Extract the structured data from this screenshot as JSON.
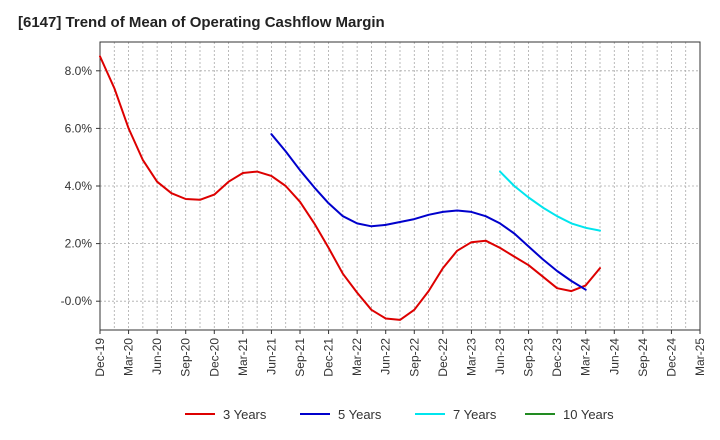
{
  "chart_data": {
    "type": "line",
    "title": "[6147]  Trend of Mean of Operating Cashflow Margin",
    "xlabel": "",
    "ylabel": "",
    "x_ticks": [
      "Dec-19",
      "Mar-20",
      "Jun-20",
      "Sep-20",
      "Dec-20",
      "Mar-21",
      "Jun-21",
      "Sep-21",
      "Dec-21",
      "Mar-22",
      "Jun-22",
      "Sep-22",
      "Dec-22",
      "Mar-23",
      "Jun-23",
      "Sep-23",
      "Dec-23",
      "Mar-24",
      "Jun-24",
      "Sep-24",
      "Dec-24",
      "Mar-25"
    ],
    "y_ticks": [
      "-0.0%",
      "2.0%",
      "4.0%",
      "6.0%",
      "8.0%"
    ],
    "y_tick_values": [
      0,
      2,
      4,
      6,
      8
    ],
    "ylim": [
      -1.0,
      9.0
    ],
    "grid": true,
    "legend_position": "bottom",
    "series": [
      {
        "name": "3 Years",
        "color": "#dd0000",
        "points": [
          [
            0,
            8.5
          ],
          [
            1,
            7.4
          ],
          [
            2,
            6.0
          ],
          [
            3,
            4.9
          ],
          [
            4,
            4.15
          ],
          [
            5,
            3.75
          ],
          [
            6,
            3.55
          ],
          [
            7,
            3.52
          ],
          [
            8,
            3.7
          ],
          [
            9,
            4.15
          ],
          [
            10,
            4.45
          ],
          [
            11,
            4.5
          ],
          [
            12,
            4.35
          ],
          [
            13,
            4.0
          ],
          [
            14,
            3.45
          ],
          [
            15,
            2.7
          ],
          [
            16,
            1.85
          ],
          [
            17,
            0.95
          ],
          [
            18,
            0.3
          ],
          [
            19,
            -0.3
          ],
          [
            20,
            -0.6
          ],
          [
            21,
            -0.65
          ],
          [
            22,
            -0.3
          ],
          [
            23,
            0.35
          ],
          [
            24,
            1.15
          ],
          [
            25,
            1.75
          ],
          [
            26,
            2.05
          ],
          [
            27,
            2.1
          ],
          [
            28,
            1.85
          ],
          [
            29,
            1.55
          ],
          [
            30,
            1.25
          ],
          [
            31,
            0.85
          ],
          [
            32,
            0.45
          ],
          [
            33,
            0.35
          ],
          [
            34,
            0.55
          ],
          [
            35,
            1.15
          ]
        ]
      },
      {
        "name": "5 Years",
        "color": "#0000cc",
        "points": [
          [
            12,
            5.8
          ],
          [
            13,
            5.2
          ],
          [
            14,
            4.55
          ],
          [
            15,
            3.95
          ],
          [
            16,
            3.4
          ],
          [
            17,
            2.95
          ],
          [
            18,
            2.7
          ],
          [
            19,
            2.6
          ],
          [
            20,
            2.65
          ],
          [
            21,
            2.75
          ],
          [
            22,
            2.85
          ],
          [
            23,
            3.0
          ],
          [
            24,
            3.1
          ],
          [
            25,
            3.15
          ],
          [
            26,
            3.1
          ],
          [
            27,
            2.95
          ],
          [
            28,
            2.7
          ],
          [
            29,
            2.35
          ],
          [
            30,
            1.9
          ],
          [
            31,
            1.45
          ],
          [
            32,
            1.05
          ],
          [
            33,
            0.7
          ],
          [
            34,
            0.4
          ]
        ]
      },
      {
        "name": "7 Years",
        "color": "#00e5ee",
        "points": [
          [
            28,
            4.5
          ],
          [
            29,
            4.0
          ],
          [
            30,
            3.6
          ],
          [
            31,
            3.25
          ],
          [
            32,
            2.95
          ],
          [
            33,
            2.7
          ],
          [
            34,
            2.55
          ],
          [
            35,
            2.45
          ]
        ]
      },
      {
        "name": "10 Years",
        "color": "#228b22",
        "points": []
      }
    ]
  }
}
